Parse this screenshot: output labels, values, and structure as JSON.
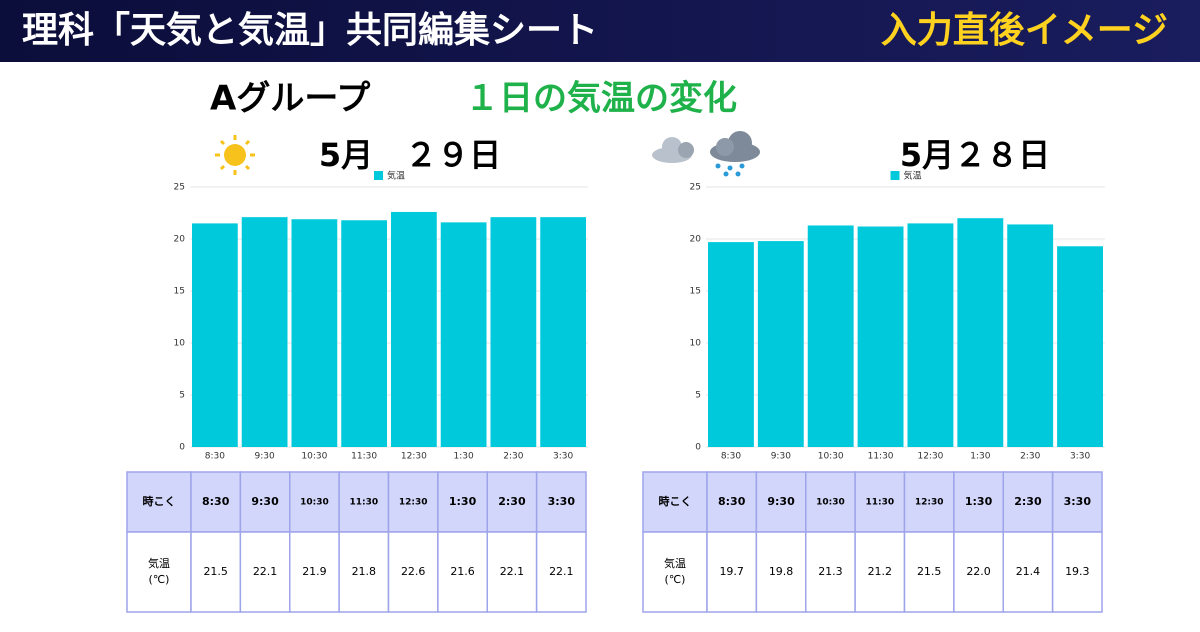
{
  "header": {
    "title": "理科「天気と気温」共同編集シート",
    "badge": "入力直後イメージ"
  },
  "group": "Aグループ",
  "subtitle": "１日の気温の変化",
  "chart_data": [
    {
      "type": "bar",
      "title": "5月　２９日",
      "categories": [
        "8:30",
        "9:30",
        "10:30",
        "11:30",
        "12:30",
        "1:30",
        "2:30",
        "3:30"
      ],
      "series": [
        {
          "name": "気温",
          "color": "#00c9db",
          "values": [
            21.5,
            22.1,
            21.9,
            21.8,
            22.6,
            21.6,
            22.1,
            22.1
          ]
        }
      ],
      "ylim": [
        0,
        25
      ],
      "yticks": [
        0,
        5,
        10,
        15,
        20,
        25
      ],
      "grid": true,
      "legend": "top"
    },
    {
      "type": "bar",
      "title": "5月２８日",
      "categories": [
        "8:30",
        "9:30",
        "10:30",
        "11:30",
        "12:30",
        "1:30",
        "2:30",
        "3:30"
      ],
      "series": [
        {
          "name": "気温",
          "color": "#00c9db",
          "values": [
            19.7,
            19.8,
            21.3,
            21.2,
            21.5,
            22.0,
            21.4,
            19.3
          ]
        }
      ],
      "ylim": [
        0,
        25
      ],
      "yticks": [
        0,
        5,
        10,
        15,
        20,
        25
      ],
      "grid": true,
      "legend": "top"
    }
  ],
  "tables": [
    {
      "header": [
        "時こく",
        "8:30",
        "9:30",
        "10:30",
        "11:30",
        "12:30",
        "1:30",
        "2:30",
        "3:30"
      ],
      "row_label": [
        "気温",
        "(℃)"
      ],
      "cells": [
        "21.5",
        "22.1",
        "21.9",
        "21.8",
        "22.6",
        "21.6",
        "22.1",
        "22.1"
      ]
    },
    {
      "header": [
        "時こく",
        "8:30",
        "9:30",
        "10:30",
        "11:30",
        "12:30",
        "1:30",
        "2:30",
        "3:30"
      ],
      "row_label": [
        "気温",
        "(℃)"
      ],
      "cells": [
        "19.7",
        "19.8",
        "21.3",
        "21.2",
        "21.5",
        "22.0",
        "21.4",
        "19.3"
      ]
    }
  ]
}
